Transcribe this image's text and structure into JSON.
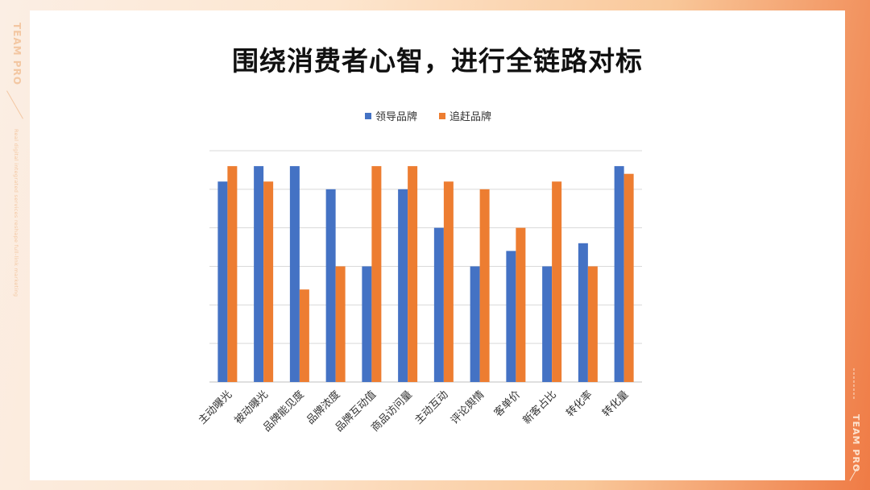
{
  "page": {
    "title": "围绕消费者心智，进行全链路对标",
    "brand": "TEAM PRO",
    "tagline": "Real digital integrated services reshape full-link marketing"
  },
  "chart_data": {
    "type": "bar",
    "title": "",
    "xlabel": "",
    "ylabel": "",
    "ylim": [
      0,
      6
    ],
    "y_ticks_shown": false,
    "grid": true,
    "legend_position": "top-center",
    "categories": [
      "主动曝光",
      "被动曝光",
      "品牌能见度",
      "品牌浓度",
      "品牌互动值",
      "商品访问量",
      "主动互动",
      "评论舆情",
      "客单价",
      "新客占比",
      "转化率",
      "转化量"
    ],
    "series": [
      {
        "name": "领导品牌",
        "color": "#4472c4",
        "values": [
          5.2,
          5.6,
          5.6,
          5.0,
          3.0,
          5.0,
          4.0,
          3.0,
          3.4,
          3.0,
          3.6,
          5.6
        ]
      },
      {
        "name": "追赶品牌",
        "color": "#ed7d31",
        "values": [
          5.6,
          5.2,
          2.4,
          3.0,
          5.6,
          5.6,
          5.2,
          5.0,
          4.0,
          5.2,
          3.0,
          5.4
        ]
      }
    ]
  }
}
